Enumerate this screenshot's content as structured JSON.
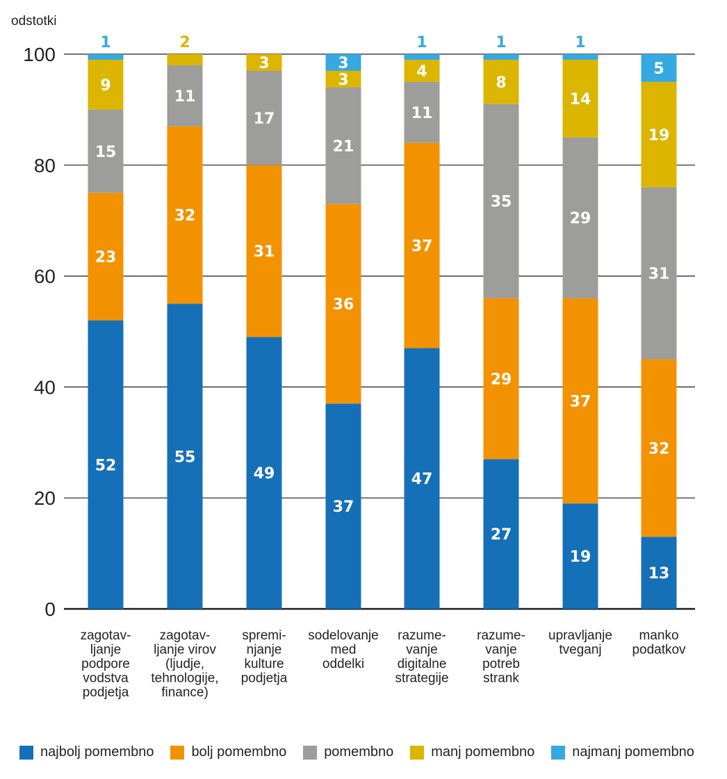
{
  "chart_data": {
    "type": "bar",
    "stacked": true,
    "ylabel": "odstotki",
    "ylim": [
      0,
      100
    ],
    "yticks": [
      "0",
      "20",
      "40",
      "60",
      "80",
      "100"
    ],
    "grid": true,
    "legend_position": "bottom",
    "categories": [
      [
        "zagotav-",
        "ljanje",
        "podpore",
        "vodstva",
        "podjetja"
      ],
      [
        "zagotav-",
        "ljanje virov",
        "(ljudje,",
        "tehnologije,",
        "finance)"
      ],
      [
        "spremi-",
        "njanje",
        "kulture",
        "podjetja"
      ],
      [
        "sodelovanje",
        "med",
        "oddelki"
      ],
      [
        "razume-",
        "vanje",
        "digitalne",
        "strategije"
      ],
      [
        "razume-",
        "vanje",
        "potreb",
        "strank"
      ],
      [
        "upravljanje",
        "tveganj"
      ],
      [
        "manko",
        "podatkov"
      ]
    ],
    "series": [
      {
        "name": "najbolj pomembno",
        "color": "#1570b8",
        "label_color": "#ffffff",
        "values": [
          52,
          55,
          49,
          37,
          47,
          27,
          19,
          13
        ]
      },
      {
        "name": "bolj pomembno",
        "color": "#f39200",
        "label_color": "#ffffff",
        "values": [
          23,
          32,
          31,
          36,
          37,
          29,
          37,
          32
        ]
      },
      {
        "name": "pomembno",
        "color": "#9d9d9c",
        "label_color": "#ffffff",
        "values": [
          15,
          11,
          17,
          21,
          11,
          35,
          29,
          31
        ]
      },
      {
        "name": "manj pomembno",
        "color": "#dbb500",
        "label_color": "#ffffff",
        "values": [
          9,
          2,
          3,
          3,
          4,
          8,
          14,
          19
        ]
      },
      {
        "name": "najmanj pomembno",
        "color": "#36a9e1",
        "label_color": "#ffffff",
        "values": [
          1,
          0,
          0,
          3,
          1,
          1,
          1,
          5
        ]
      }
    ]
  }
}
